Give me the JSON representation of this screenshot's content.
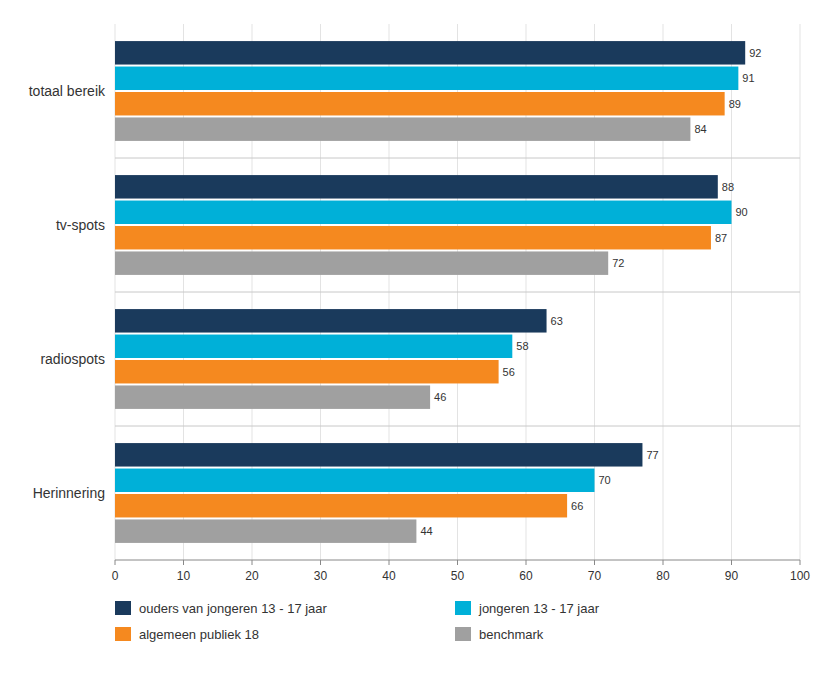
{
  "chart_data": {
    "type": "bar",
    "orientation": "horizontal",
    "categories": [
      "totaal bereik",
      "tv-spots",
      "radiospots",
      "Herinnering"
    ],
    "series": [
      {
        "name": "ouders van jongeren 13 - 17 jaar",
        "color": "#1a3a5c",
        "values": [
          92,
          88,
          63,
          77
        ]
      },
      {
        "name": "jongeren 13 - 17 jaar",
        "color": "#00b0d8",
        "values": [
          91,
          90,
          58,
          70
        ]
      },
      {
        "name": "algemeen publiek 18",
        "color": "#f5891f",
        "values": [
          89,
          87,
          56,
          66
        ]
      },
      {
        "name": "benchmark",
        "color": "#a0a0a0",
        "values": [
          84,
          72,
          46,
          44
        ]
      }
    ],
    "xlim": [
      0,
      100
    ],
    "xticks": [
      0,
      10,
      20,
      30,
      40,
      50,
      60,
      70,
      80,
      90,
      100
    ],
    "grid": true,
    "legend": "bottom",
    "data_labels": true
  }
}
